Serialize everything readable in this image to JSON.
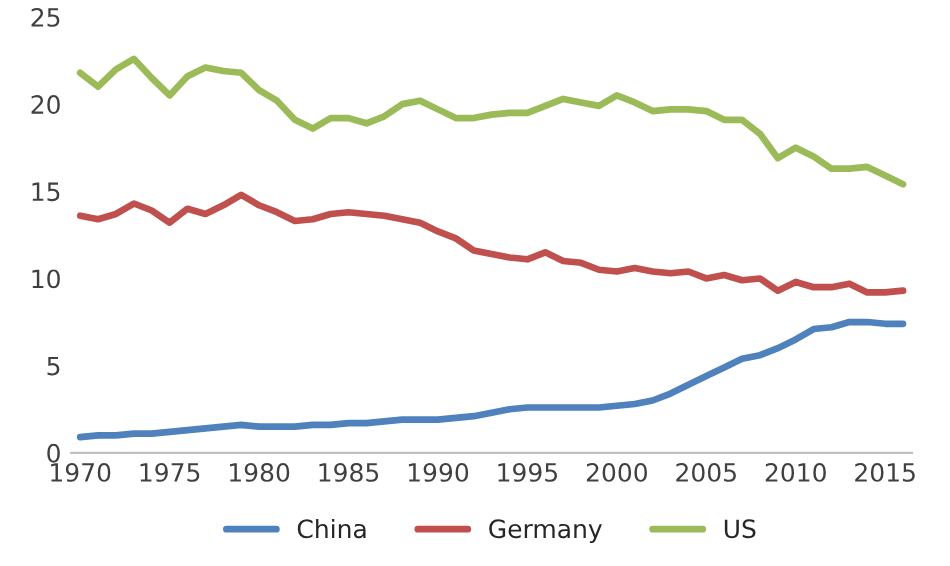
{
  "chart_data": {
    "type": "line",
    "x": [
      1970,
      1971,
      1972,
      1973,
      1974,
      1975,
      1976,
      1977,
      1978,
      1979,
      1980,
      1981,
      1982,
      1983,
      1984,
      1985,
      1986,
      1987,
      1988,
      1989,
      1990,
      1991,
      1992,
      1993,
      1994,
      1995,
      1996,
      1997,
      1998,
      1999,
      2000,
      2001,
      2002,
      2003,
      2004,
      2005,
      2006,
      2007,
      2008,
      2009,
      2010,
      2011,
      2012,
      2013,
      2014,
      2015,
      2016
    ],
    "series": [
      {
        "name": "China",
        "color": "#4f81bd",
        "values": [
          0.9,
          1.0,
          1.0,
          1.1,
          1.1,
          1.2,
          1.3,
          1.4,
          1.5,
          1.6,
          1.5,
          1.5,
          1.5,
          1.6,
          1.6,
          1.7,
          1.7,
          1.8,
          1.9,
          1.9,
          1.9,
          2.0,
          2.1,
          2.3,
          2.5,
          2.6,
          2.6,
          2.6,
          2.6,
          2.6,
          2.7,
          2.8,
          3.0,
          3.4,
          3.9,
          4.4,
          4.9,
          5.4,
          5.6,
          6.0,
          6.5,
          7.1,
          7.2,
          7.5,
          7.5,
          7.4,
          7.4
        ]
      },
      {
        "name": "Germany",
        "color": "#c0504d",
        "values": [
          13.6,
          13.4,
          13.7,
          14.3,
          13.9,
          13.2,
          14.0,
          13.7,
          14.2,
          14.8,
          14.2,
          13.8,
          13.3,
          13.4,
          13.7,
          13.8,
          13.7,
          13.6,
          13.4,
          13.2,
          12.7,
          12.3,
          11.6,
          11.4,
          11.2,
          11.1,
          11.5,
          11.0,
          10.9,
          10.5,
          10.4,
          10.6,
          10.4,
          10.3,
          10.4,
          10.0,
          10.2,
          9.9,
          10.0,
          9.3,
          9.8,
          9.5,
          9.5,
          9.7,
          9.2,
          9.2,
          9.3
        ]
      },
      {
        "name": "US",
        "color": "#9bbb59",
        "values": [
          21.8,
          21.0,
          22.0,
          22.6,
          21.5,
          20.5,
          21.6,
          22.1,
          21.9,
          21.8,
          20.8,
          20.2,
          19.1,
          18.6,
          19.2,
          19.2,
          18.9,
          19.3,
          20.0,
          20.2,
          19.7,
          19.2,
          19.2,
          19.4,
          19.5,
          19.5,
          19.9,
          20.3,
          20.1,
          19.9,
          20.5,
          20.1,
          19.6,
          19.7,
          19.7,
          19.6,
          19.1,
          19.1,
          18.3,
          16.9,
          17.5,
          17.0,
          16.3,
          16.3,
          16.4,
          15.9,
          15.4
        ]
      }
    ],
    "xlim": [
      1969.5,
      2016.5
    ],
    "xticks": [
      1970,
      1975,
      1980,
      1985,
      1990,
      1995,
      2000,
      2005,
      2010,
      2015
    ],
    "ylim": [
      0,
      25
    ],
    "yticks": [
      0,
      5,
      10,
      15,
      20,
      25
    ],
    "grid": false,
    "legend": "bottom",
    "marker": "none",
    "line_style": "solid"
  }
}
